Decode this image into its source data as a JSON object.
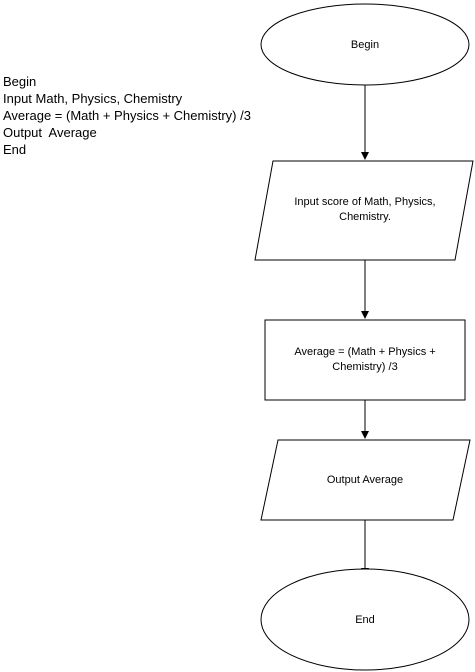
{
  "pseudocode": {
    "lines": [
      "Begin",
      "Input Math, Physics, Chemistry",
      "Average = (Math + Physics + Chemistry) /3",
      "Output  Average",
      "End"
    ]
  },
  "flowchart": {
    "begin": "Begin",
    "input": "Input score of Math, Physics, Chemistry.",
    "process": "Average = (Math + Physics + Chemistry) /3",
    "output": "Output Average",
    "end": "End"
  }
}
